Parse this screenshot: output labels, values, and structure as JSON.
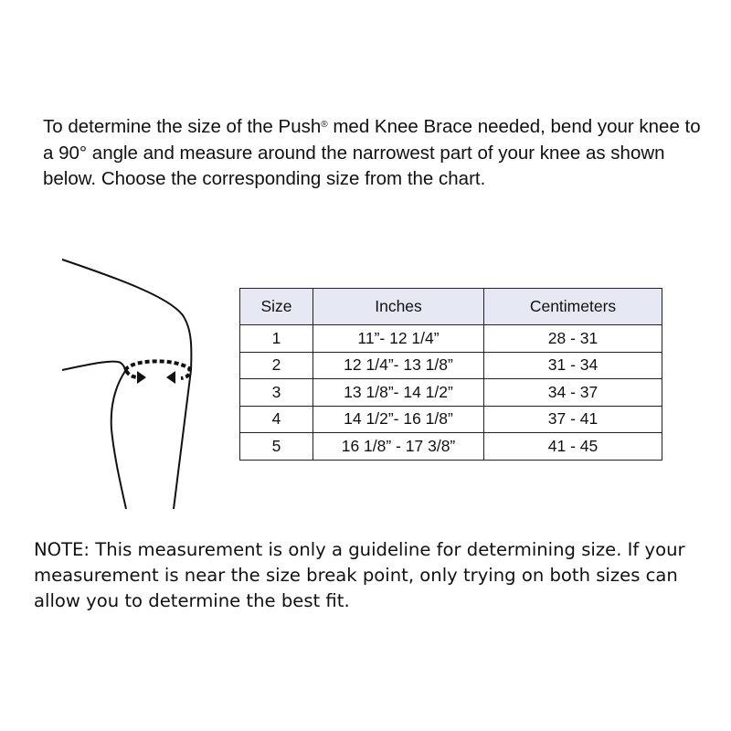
{
  "intro": {
    "before_mark": "To determine the size of the Push",
    "mark": "®",
    "after_mark": " med Knee Brace needed, bend your knee to a 90° angle and measure around the narrowest part of your knee as shown below. Choose the corresponding size from the chart."
  },
  "illustration": {
    "icon": "knee-measurement-diagram"
  },
  "size_table": {
    "headers": [
      "Size",
      "Inches",
      "Centimeters"
    ],
    "rows": [
      [
        "1",
        "11”- 12 1/4”",
        "28 - 31"
      ],
      [
        "2",
        "12 1/4”- 13 1/8”",
        "31 - 34"
      ],
      [
        "3",
        "13 1/8”- 14 1/2”",
        "34 - 37"
      ],
      [
        "4",
        "14 1/2”- 16 1/8”",
        "37 - 41"
      ],
      [
        "5",
        "16 1/8” - 17 3/8”",
        "41 - 45"
      ]
    ],
    "header_color": "#e6e8f4"
  },
  "note": "NOTE: This measurement is only a guideline for determining size. If your measurement is near the size break point, only trying on both sizes can allow you to determine the best fit."
}
